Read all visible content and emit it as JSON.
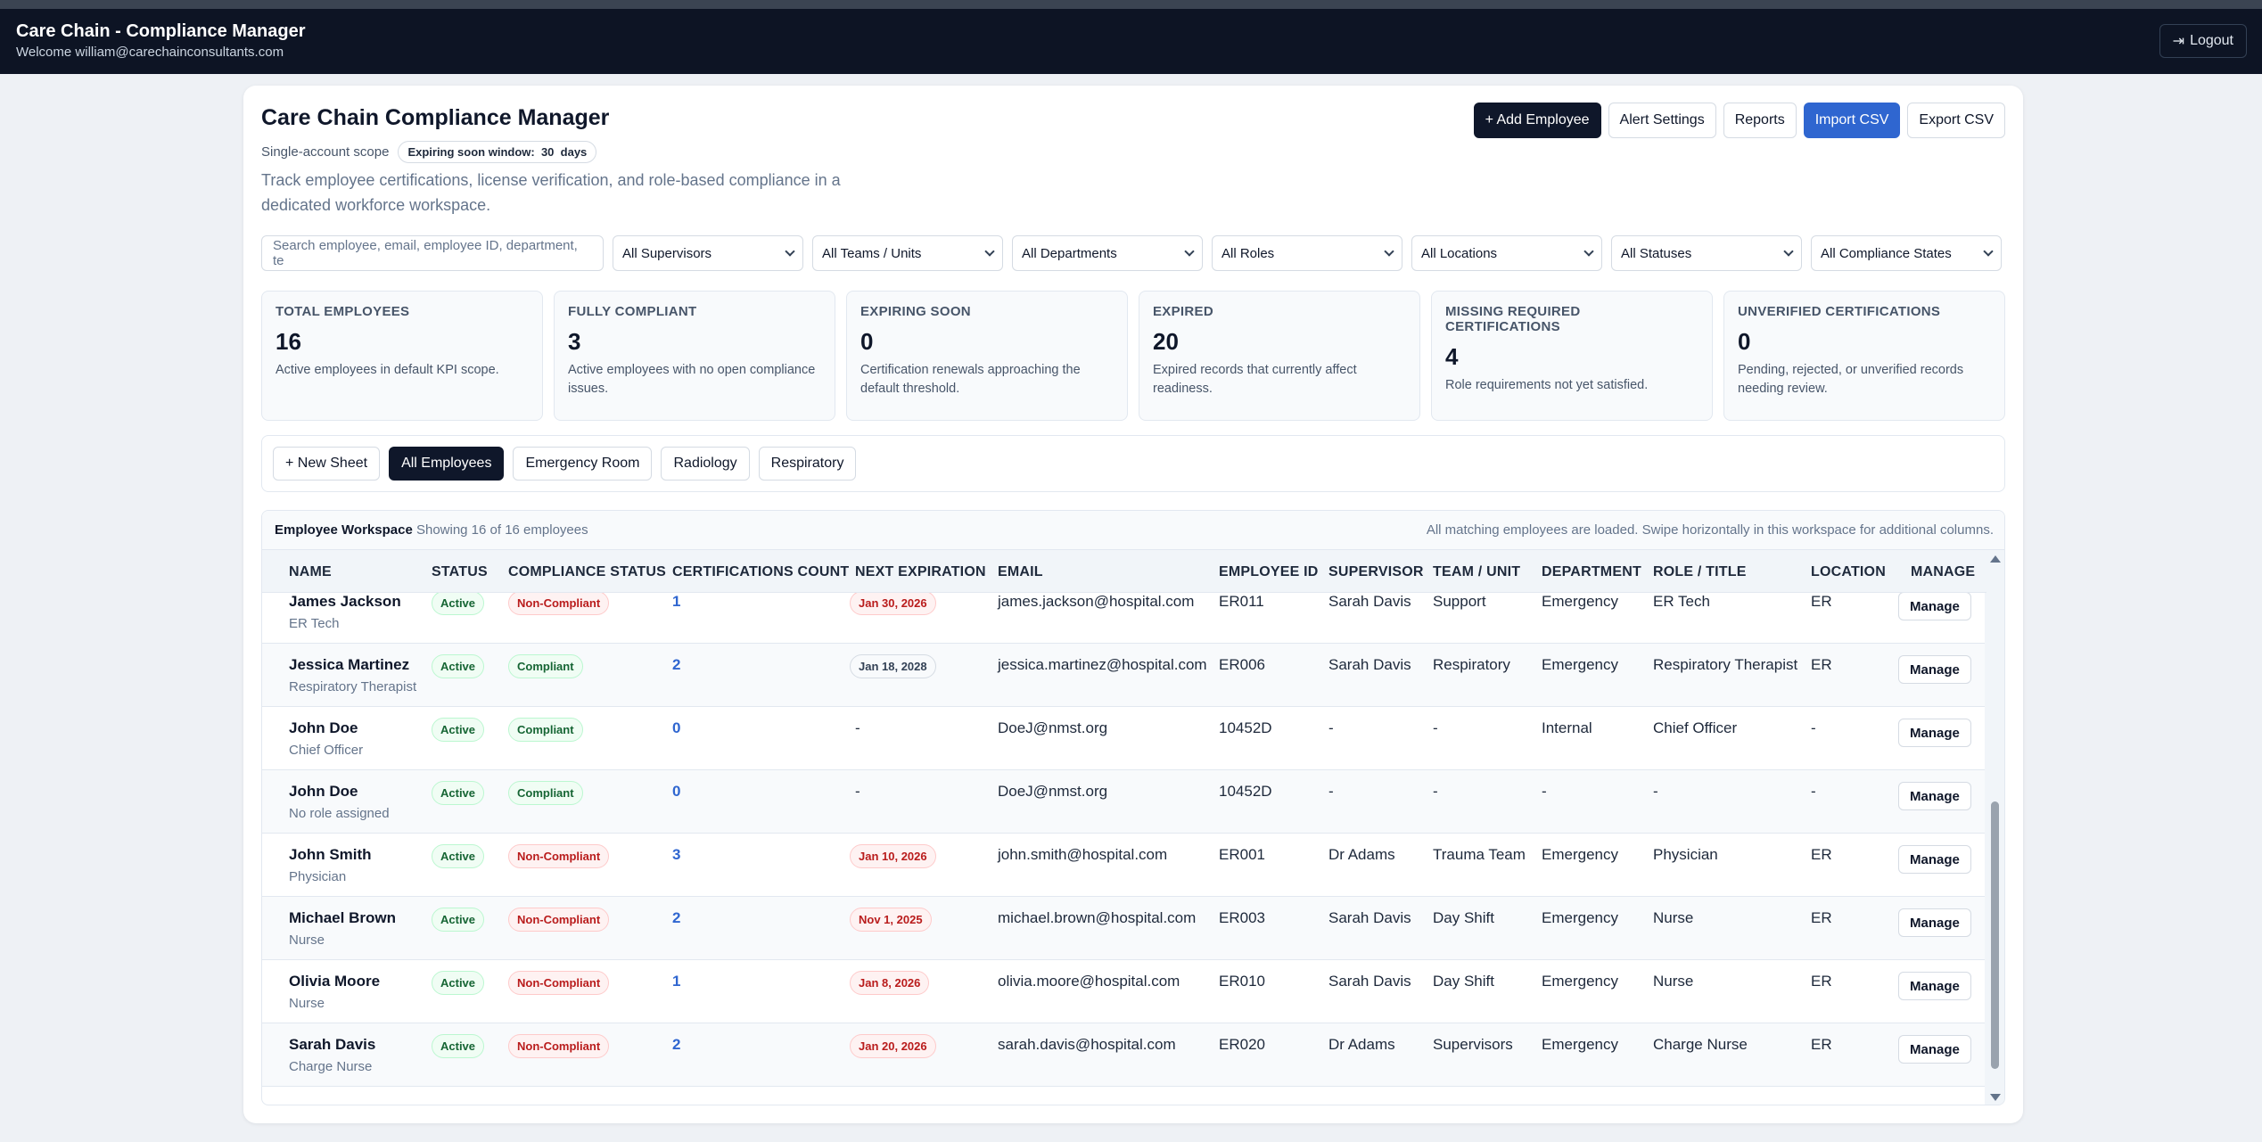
{
  "app": {
    "title": "Care Chain - Compliance Manager",
    "welcome": "Welcome william@carechainconsultants.com",
    "logout_label": "Logout"
  },
  "header": {
    "title": "Care Chain Compliance Manager",
    "scope": "Single-account scope",
    "window_label": "Expiring soon window:",
    "window_value": "30",
    "window_unit": "days",
    "description": "Track employee certifications, license verification, and role-based compliance in a dedicated workforce workspace."
  },
  "actions": {
    "add_employee": "+ Add Employee",
    "alert_settings": "Alert Settings",
    "reports": "Reports",
    "import_csv": "Import CSV",
    "export_csv": "Export CSV"
  },
  "filters": {
    "search_placeholder": "Search employee, email, employee ID, department, te",
    "supervisors": "All Supervisors",
    "teams": "All Teams / Units",
    "departments": "All Departments",
    "roles": "All Roles",
    "locations": "All Locations",
    "statuses": "All Statuses",
    "compliance": "All Compliance States"
  },
  "kpis": [
    {
      "label": "TOTAL EMPLOYEES",
      "value": "16",
      "sub": "Active employees in default KPI scope."
    },
    {
      "label": "FULLY COMPLIANT",
      "value": "3",
      "sub": "Active employees with no open compliance issues."
    },
    {
      "label": "EXPIRING SOON",
      "value": "0",
      "sub": "Certification renewals approaching the default threshold."
    },
    {
      "label": "EXPIRED",
      "value": "20",
      "sub": "Expired records that currently affect readiness."
    },
    {
      "label": "MISSING REQUIRED CERTIFICATIONS",
      "value": "4",
      "sub": "Role requirements not yet satisfied."
    },
    {
      "label": "UNVERIFIED CERTIFICATIONS",
      "value": "0",
      "sub": "Pending, rejected, or unverified records needing review."
    }
  ],
  "sheets": {
    "new_sheet": "+ New Sheet",
    "tabs": [
      "All Employees",
      "Emergency Room",
      "Radiology",
      "Respiratory"
    ]
  },
  "workspace": {
    "title": "Employee Workspace",
    "showing": "Showing 16 of 16 employees",
    "note": "All matching employees are loaded. Swipe horizontally in this workspace for additional columns."
  },
  "table": {
    "columns": [
      "NAME",
      "STATUS",
      "COMPLIANCE STATUS",
      "CERTIFICATIONS COUNT",
      "NEXT EXPIRATION",
      "EMAIL",
      "EMPLOYEE ID",
      "SUPERVISOR",
      "TEAM / UNIT",
      "DEPARTMENT",
      "ROLE / TITLE",
      "LOCATION",
      "MANAGE"
    ],
    "manage_label": "Manage",
    "rows": [
      {
        "name": "James Jackson",
        "role": "ER Tech",
        "status": "Active",
        "compliance": "Non-Compliant",
        "count": "1",
        "next": "Jan 30, 2026",
        "email": "james.jackson@hospital.com",
        "id": "ER011",
        "supervisor": "Sarah Davis",
        "team": "Support",
        "department": "Emergency",
        "title": "ER Tech",
        "location": "ER"
      },
      {
        "name": "Jessica Martinez",
        "role": "Respiratory Therapist",
        "status": "Active",
        "compliance": "Compliant",
        "count": "2",
        "next": "Jan 18, 2028",
        "email": "jessica.martinez@hospital.com",
        "id": "ER006",
        "supervisor": "Sarah Davis",
        "team": "Respiratory",
        "department": "Emergency",
        "title": "Respiratory Therapist",
        "location": "ER"
      },
      {
        "name": "John Doe",
        "role": "Chief Officer",
        "status": "Active",
        "compliance": "Compliant",
        "count": "0",
        "next": "-",
        "email": "DoeJ@nmst.org",
        "id": "10452D",
        "supervisor": "-",
        "team": "-",
        "department": "Internal",
        "title": "Chief Officer",
        "location": "-"
      },
      {
        "name": "John Doe",
        "role": "No role assigned",
        "status": "Active",
        "compliance": "Compliant",
        "count": "0",
        "next": "-",
        "email": "DoeJ@nmst.org",
        "id": "10452D",
        "supervisor": "-",
        "team": "-",
        "department": "-",
        "title": "-",
        "location": "-"
      },
      {
        "name": "John Smith",
        "role": "Physician",
        "status": "Active",
        "compliance": "Non-Compliant",
        "count": "3",
        "next": "Jan 10, 2026",
        "email": "john.smith@hospital.com",
        "id": "ER001",
        "supervisor": "Dr Adams",
        "team": "Trauma Team",
        "department": "Emergency",
        "title": "Physician",
        "location": "ER"
      },
      {
        "name": "Michael Brown",
        "role": "Nurse",
        "status": "Active",
        "compliance": "Non-Compliant",
        "count": "2",
        "next": "Nov 1, 2025",
        "email": "michael.brown@hospital.com",
        "id": "ER003",
        "supervisor": "Sarah Davis",
        "team": "Day Shift",
        "department": "Emergency",
        "title": "Nurse",
        "location": "ER"
      },
      {
        "name": "Olivia Moore",
        "role": "Nurse",
        "status": "Active",
        "compliance": "Non-Compliant",
        "count": "1",
        "next": "Jan 8, 2026",
        "email": "olivia.moore@hospital.com",
        "id": "ER010",
        "supervisor": "Sarah Davis",
        "team": "Day Shift",
        "department": "Emergency",
        "title": "Nurse",
        "location": "ER"
      },
      {
        "name": "Sarah Davis",
        "role": "Charge Nurse",
        "status": "Active",
        "compliance": "Non-Compliant",
        "count": "2",
        "next": "Jan 20, 2026",
        "email": "sarah.davis@hospital.com",
        "id": "ER020",
        "supervisor": "Dr Adams",
        "team": "Supervisors",
        "department": "Emergency",
        "title": "Charge Nurse",
        "location": "ER"
      }
    ]
  },
  "colors": {
    "primary_dark": "#0f172a",
    "accent_blue": "#2f66d0",
    "compliant_green": "#166534",
    "noncompliant_red": "#b91c1c"
  }
}
